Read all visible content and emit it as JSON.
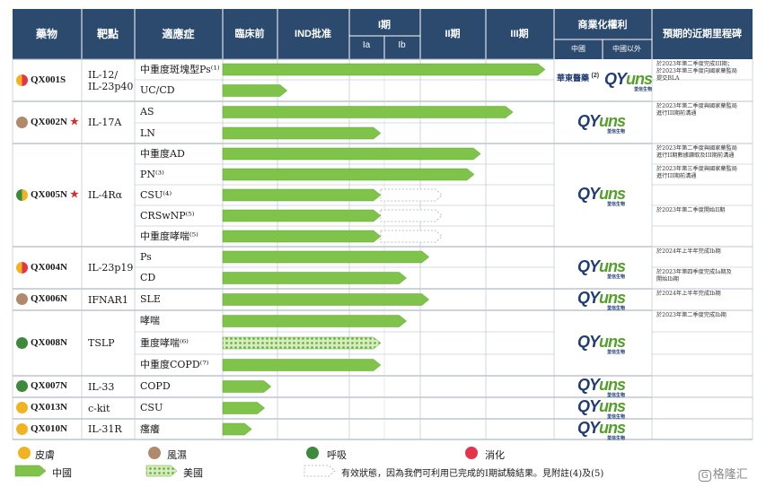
{
  "headers": {
    "drug": "藥物",
    "target": "靶點",
    "indication": "適應症",
    "preclinical": "臨床前",
    "ind": "IND批准",
    "phase1": "I期",
    "phase1a": "Ia",
    "phase1b": "Ib",
    "phase2": "II期",
    "phase3": "III期",
    "commercial": "商業化權利",
    "china": "中國",
    "outside_china": "中國以外",
    "milestones": "預期的近期里程碑"
  },
  "rows": [
    {
      "indication": "中重度斑塊型Ps⁽¹⁾",
      "progress": 1.0,
      "region": "china"
    },
    {
      "indication": "UC/CD",
      "progress": 0.2,
      "region": "china"
    },
    {
      "indication": "AS",
      "progress": 0.9,
      "region": "china"
    },
    {
      "indication": "LN",
      "progress": 0.49,
      "region": "china"
    },
    {
      "indication": "中重度AD",
      "progress": 0.8,
      "region": "china"
    },
    {
      "indication": "PN⁽³⁾",
      "progress": 0.78,
      "region": "china"
    },
    {
      "indication": "CSU⁽⁴⁾",
      "progress": 0.49,
      "region": "china",
      "dashed_to": 0.68
    },
    {
      "indication": "CRSwNP⁽⁵⁾",
      "progress": 0.49,
      "region": "china",
      "dashed_to": 0.68
    },
    {
      "indication": "中重度哮喘⁽⁵⁾",
      "progress": 0.49,
      "region": "china",
      "dashed_to": 0.68
    },
    {
      "indication": "Ps",
      "progress": 0.64,
      "region": "china"
    },
    {
      "indication": "CD",
      "progress": 0.57,
      "region": "china"
    },
    {
      "indication": "SLE",
      "progress": 0.64,
      "region": "china"
    },
    {
      "indication": "哮喘",
      "progress": 0.57,
      "region": "china"
    },
    {
      "indication": "重度哮喘⁽⁶⁾",
      "progress": 0.49,
      "region": "us"
    },
    {
      "indication": "中重度COPD⁽⁷⁾",
      "progress": 0.49,
      "region": "china"
    },
    {
      "indication": "COPD",
      "progress": 0.15,
      "region": "china"
    },
    {
      "indication": "CSU",
      "progress": 0.13,
      "region": "china"
    },
    {
      "indication": "瘙癢",
      "progress": 0.09,
      "region": "china"
    }
  ],
  "drugs": [
    {
      "name": "QX001S",
      "star": "",
      "target": "IL-12/\nIL-23p40",
      "colors": [
        "#e5344a",
        "#f0b323"
      ],
      "row_start": 0,
      "row_count": 2
    },
    {
      "name": "QX002N",
      "star": "★",
      "target": "IL-17A",
      "colors": [
        "#b08a6a"
      ],
      "row_start": 2,
      "row_count": 2
    },
    {
      "name": "QX005N",
      "star": "★",
      "target": "IL-4Rα",
      "colors": [
        "#f0b323",
        "#3e8a3c"
      ],
      "row_start": 4,
      "row_count": 5
    },
    {
      "name": "QX004N",
      "star": "",
      "target": "IL-23p19",
      "colors": [
        "#e5344a",
        "#f0b323"
      ],
      "row_start": 9,
      "row_count": 2
    },
    {
      "name": "QX006N",
      "star": "",
      "target": "IFNAR1",
      "colors": [
        "#b08a6a"
      ],
      "row_start": 11,
      "row_count": 1
    },
    {
      "name": "QX008N",
      "star": "",
      "target": "TSLP",
      "colors": [
        "#3e8a3c"
      ],
      "row_start": 12,
      "row_count": 3
    },
    {
      "name": "QX007N",
      "star": "",
      "target": "IL-33",
      "colors": [
        "#3e8a3c"
      ],
      "row_start": 15,
      "row_count": 1
    },
    {
      "name": "QX013N",
      "star": "",
      "target": "c-kit",
      "colors": [
        "#f0b323"
      ],
      "row_start": 16,
      "row_count": 1
    },
    {
      "name": "QX010N",
      "star": "",
      "target": "IL-31R",
      "colors": [
        "#f0b323"
      ],
      "row_start": 17,
      "row_count": 1
    }
  ],
  "milestones": [
    {
      "text": "於2023年第二季度完成III期；\n於2023年第三季度向國家藥監局\n提交BLA",
      "row": 0
    },
    {
      "text": "於2023年第二季度與國家藥監局\n進行III期前溝通",
      "row": 2
    },
    {
      "text": "於2023年第二季度與國家藥監局\n進行II期數據讀取及III期前溝通",
      "row": 4
    },
    {
      "text": "於2023年第三季度與國家藥監局\n進行III期前溝通",
      "row": 5
    },
    {
      "text": "於2023年第二季度開始II期",
      "row": 7
    },
    {
      "text": "於2024年上半年完成Ib期",
      "row": 9
    },
    {
      "text": "於2023年第四季度完成Ia期及\n開始Ib期",
      "row": 10
    },
    {
      "text": "於2024年上半年完成Ib期",
      "row": 11
    },
    {
      "text": "於2023年第二季度完成Ib期",
      "row": 12
    }
  ],
  "partner_logo": {
    "text": "華東醫藥",
    "footnote": "(2)"
  },
  "company_logo": {
    "main_a": "QY",
    "main_b": "uns",
    "sub": "荃信生物"
  },
  "legend": {
    "derm": "皮膚",
    "rheum": "風濕",
    "resp": "呼吸",
    "digest": "消化",
    "china": "中國",
    "us": "美國",
    "dashed_note": "有效狀態，因為我們可利用已完成的I期試驗結果。見附註(4)及(5)"
  },
  "watermark": "格隆汇",
  "colors": {
    "header": "#2b4a6e",
    "bar": "#7fc34a",
    "bar_edge": "#5ea82f",
    "accent": "#d32f2f",
    "derm": "#f0b323",
    "rheum": "#b08a6a",
    "resp": "#3e8a3c",
    "digest": "#e5344a"
  }
}
